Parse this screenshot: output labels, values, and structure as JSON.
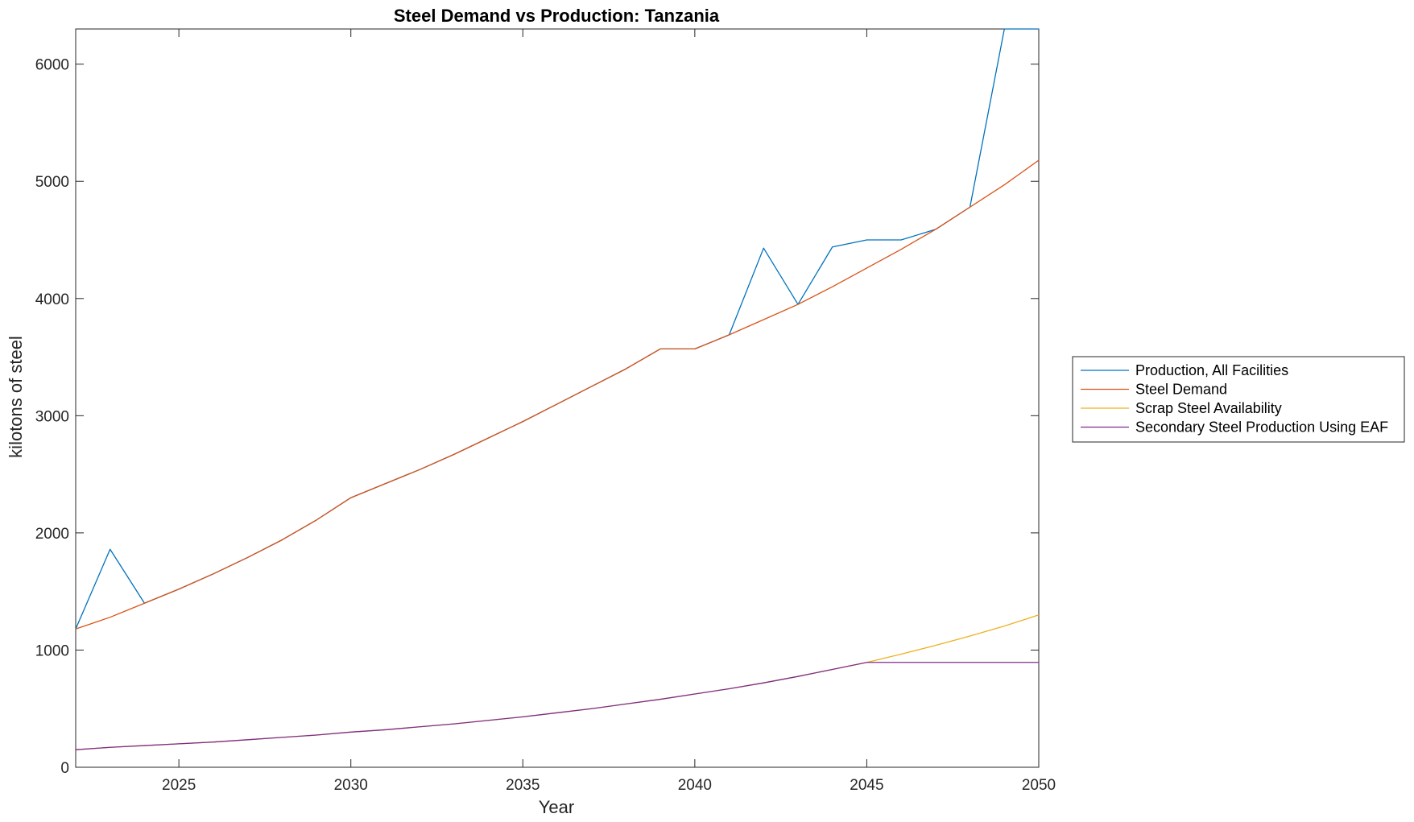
{
  "chart_data": {
    "type": "line",
    "title": "Steel Demand vs Production: Tanzania",
    "xlabel": "Year",
    "ylabel": "kilotons of steel",
    "xlim": [
      2022,
      2050
    ],
    "ylim": [
      0,
      6300
    ],
    "xticks": [
      2025,
      2030,
      2035,
      2040,
      2045,
      2050
    ],
    "yticks": [
      0,
      1000,
      2000,
      3000,
      4000,
      5000,
      6000
    ],
    "grid": false,
    "legend_position": "outside-right",
    "x": [
      2022,
      2023,
      2024,
      2025,
      2026,
      2027,
      2028,
      2029,
      2030,
      2031,
      2032,
      2033,
      2034,
      2035,
      2036,
      2037,
      2038,
      2039,
      2040,
      2041,
      2042,
      2043,
      2044,
      2045,
      2046,
      2047,
      2048,
      2049,
      2050
    ],
    "series": [
      {
        "name": "Production, All Facilities",
        "color": "#0072BD",
        "values": [
          1180,
          1860,
          1400,
          1520,
          1650,
          1790,
          1940,
          2110,
          2300,
          2420,
          2540,
          2670,
          2810,
          2950,
          3100,
          3250,
          3400,
          3570,
          3570,
          3690,
          4430,
          3950,
          4440,
          4500,
          4500,
          4590,
          4780,
          6300,
          6300
        ]
      },
      {
        "name": "Steel Demand",
        "color": "#D95319",
        "values": [
          1180,
          1280,
          1400,
          1520,
          1650,
          1790,
          1940,
          2110,
          2300,
          2420,
          2540,
          2670,
          2810,
          2950,
          3100,
          3250,
          3400,
          3570,
          3570,
          3690,
          3820,
          3950,
          4100,
          4260,
          4420,
          4590,
          4780,
          4970,
          5180
        ]
      },
      {
        "name": "Scrap Steel Availability",
        "color": "#EDB120",
        "values": [
          150,
          170,
          185,
          200,
          215,
          235,
          255,
          275,
          300,
          320,
          345,
          370,
          400,
          430,
          465,
          500,
          540,
          580,
          625,
          670,
          720,
          775,
          835,
          895,
          965,
          1040,
          1120,
          1205,
          1300
        ]
      },
      {
        "name": "Secondary Steel Production Using EAF",
        "color": "#7E2F8E",
        "values": [
          150,
          170,
          185,
          200,
          215,
          235,
          255,
          275,
          300,
          320,
          345,
          370,
          400,
          430,
          465,
          500,
          540,
          580,
          625,
          670,
          720,
          775,
          835,
          895,
          895,
          895,
          895,
          895,
          895
        ]
      }
    ]
  }
}
